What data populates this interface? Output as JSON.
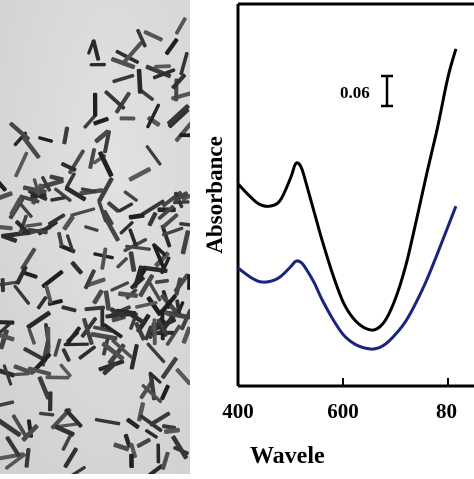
{
  "figure": {
    "tem_image": {
      "description_name": "tem-micrograph"
    },
    "chart_data": {
      "type": "line",
      "xlabel": "Wavele",
      "ylabel": "Absorbance",
      "x_ticks": [
        "400",
        "600",
        "80"
      ],
      "xlim": [
        400,
        850
      ],
      "grid": false,
      "scale_bar_label": "0.06",
      "series": [
        {
          "color": "#000000",
          "x": [
            400,
            420,
            440,
            460,
            480,
            500,
            510,
            520,
            530,
            545,
            560,
            580,
            600,
            620,
            640,
            660,
            680,
            700,
            720,
            740,
            760,
            780,
            800,
            815
          ],
          "y": [
            0.3,
            0.29,
            0.282,
            0.28,
            0.285,
            0.305,
            0.318,
            0.315,
            0.3,
            0.275,
            0.25,
            0.22,
            0.195,
            0.18,
            0.172,
            0.17,
            0.178,
            0.198,
            0.228,
            0.268,
            0.31,
            0.35,
            0.395,
            0.42
          ]
        },
        {
          "color": "#1a237e",
          "x": [
            400,
            420,
            440,
            460,
            480,
            500,
            510,
            520,
            530,
            545,
            560,
            580,
            600,
            620,
            640,
            660,
            680,
            700,
            720,
            740,
            760,
            780,
            800,
            815
          ],
          "y": [
            0.225,
            0.218,
            0.213,
            0.213,
            0.217,
            0.226,
            0.231,
            0.23,
            0.224,
            0.212,
            0.197,
            0.18,
            0.166,
            0.158,
            0.154,
            0.153,
            0.157,
            0.166,
            0.178,
            0.195,
            0.215,
            0.238,
            0.262,
            0.28
          ]
        }
      ],
      "ylim": [
        0.12,
        0.46
      ]
    }
  }
}
